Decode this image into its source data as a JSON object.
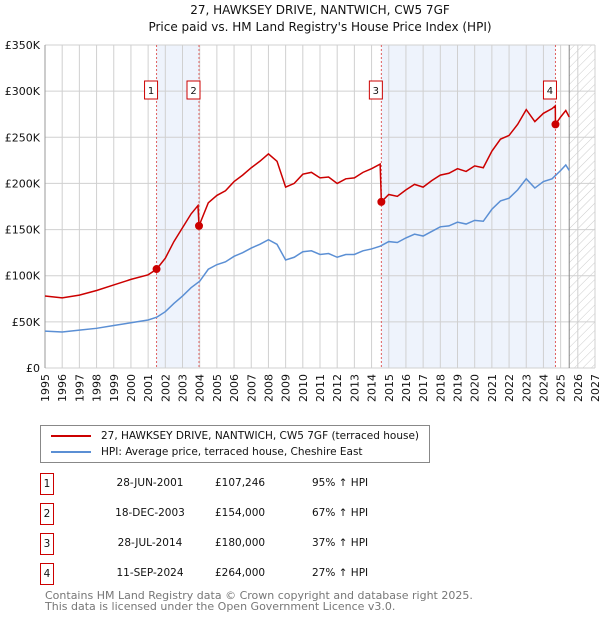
{
  "chart_data": {
    "type": "line",
    "title": "27, HAWKSEY DRIVE, NANTWICH, CW5 7GF",
    "subtitle": "Price paid vs. HM Land Registry's House Price Index (HPI)",
    "xlim": [
      1995,
      2027
    ],
    "ylim": [
      0,
      350000
    ],
    "yticks": [
      {
        "v": 0,
        "label": "£0"
      },
      {
        "v": 50000,
        "label": "£50K"
      },
      {
        "v": 100000,
        "label": "£100K"
      },
      {
        "v": 150000,
        "label": "£150K"
      },
      {
        "v": 200000,
        "label": "£200K"
      },
      {
        "v": 250000,
        "label": "£250K"
      },
      {
        "v": 300000,
        "label": "£300K"
      },
      {
        "v": 350000,
        "label": "£350K"
      }
    ],
    "xticks": [
      "1995",
      "1996",
      "1997",
      "1998",
      "1999",
      "2000",
      "2001",
      "2002",
      "2003",
      "2004",
      "2005",
      "2006",
      "2007",
      "2008",
      "2009",
      "2010",
      "2011",
      "2012",
      "2013",
      "2014",
      "2015",
      "2016",
      "2017",
      "2018",
      "2019",
      "2020",
      "2021",
      "2022",
      "2023",
      "2024",
      "2025",
      "2026",
      "2027"
    ],
    "grid": true,
    "shaded_ranges": [
      [
        2001.49,
        2003.96
      ],
      [
        2014.57,
        2024.7
      ]
    ],
    "forecast_from": 2025.5,
    "series": [
      {
        "name": "27, HAWKSEY DRIVE, NANTWICH, CW5 7GF (terraced house)",
        "color": "#cc0000",
        "points": [
          [
            1995,
            78
          ],
          [
            1996,
            76
          ],
          [
            1997,
            79
          ],
          [
            1998,
            84
          ],
          [
            1999,
            90
          ],
          [
            2000,
            96
          ],
          [
            2001,
            101
          ],
          [
            2001.49,
            107
          ],
          [
            2002,
            119
          ],
          [
            2002.5,
            137
          ],
          [
            2003,
            152
          ],
          [
            2003.5,
            167
          ],
          [
            2003.9,
            176
          ],
          [
            2003.96,
            154
          ],
          [
            2004.5,
            179
          ],
          [
            2005,
            187
          ],
          [
            2005.5,
            192
          ],
          [
            2006,
            202
          ],
          [
            2006.5,
            209
          ],
          [
            2007,
            217
          ],
          [
            2007.5,
            224
          ],
          [
            2008,
            232
          ],
          [
            2008.5,
            224
          ],
          [
            2009,
            196
          ],
          [
            2009.5,
            200
          ],
          [
            2010,
            210
          ],
          [
            2010.5,
            212
          ],
          [
            2011,
            206
          ],
          [
            2011.5,
            207
          ],
          [
            2012,
            200
          ],
          [
            2012.5,
            205
          ],
          [
            2013,
            206
          ],
          [
            2013.5,
            212
          ],
          [
            2014,
            216
          ],
          [
            2014.5,
            221
          ],
          [
            2014.57,
            180
          ],
          [
            2015,
            188
          ],
          [
            2015.5,
            186
          ],
          [
            2016,
            193
          ],
          [
            2016.5,
            199
          ],
          [
            2017,
            196
          ],
          [
            2017.5,
            203
          ],
          [
            2018,
            209
          ],
          [
            2018.5,
            211
          ],
          [
            2019,
            216
          ],
          [
            2019.5,
            213
          ],
          [
            2020,
            219
          ],
          [
            2020.5,
            217
          ],
          [
            2021,
            235
          ],
          [
            2021.5,
            248
          ],
          [
            2022,
            252
          ],
          [
            2022.5,
            264
          ],
          [
            2023,
            280
          ],
          [
            2023.5,
            267
          ],
          [
            2024,
            276
          ],
          [
            2024.5,
            281
          ],
          [
            2024.69,
            284
          ],
          [
            2024.7,
            264
          ],
          [
            2025,
            272
          ],
          [
            2025.3,
            279
          ],
          [
            2025.5,
            272
          ]
        ]
      },
      {
        "name": "HPI: Average price, terraced house, Cheshire East",
        "color": "#5b8fd4",
        "points": [
          [
            1995,
            40
          ],
          [
            1996,
            39
          ],
          [
            1997,
            41
          ],
          [
            1998,
            43
          ],
          [
            1999,
            46
          ],
          [
            2000,
            49
          ],
          [
            2001,
            52
          ],
          [
            2001.5,
            55
          ],
          [
            2002,
            61
          ],
          [
            2002.5,
            70
          ],
          [
            2003,
            78
          ],
          [
            2003.5,
            87
          ],
          [
            2004,
            94
          ],
          [
            2004.5,
            107
          ],
          [
            2005,
            112
          ],
          [
            2005.5,
            115
          ],
          [
            2006,
            121
          ],
          [
            2006.5,
            125
          ],
          [
            2007,
            130
          ],
          [
            2007.5,
            134
          ],
          [
            2008,
            139
          ],
          [
            2008.5,
            134
          ],
          [
            2009,
            117
          ],
          [
            2009.5,
            120
          ],
          [
            2010,
            126
          ],
          [
            2010.5,
            127
          ],
          [
            2011,
            123
          ],
          [
            2011.5,
            124
          ],
          [
            2012,
            120
          ],
          [
            2012.5,
            123
          ],
          [
            2013,
            123
          ],
          [
            2013.5,
            127
          ],
          [
            2014,
            129
          ],
          [
            2014.5,
            132
          ],
          [
            2015,
            137
          ],
          [
            2015.5,
            136
          ],
          [
            2016,
            141
          ],
          [
            2016.5,
            145
          ],
          [
            2017,
            143
          ],
          [
            2017.5,
            148
          ],
          [
            2018,
            153
          ],
          [
            2018.5,
            154
          ],
          [
            2019,
            158
          ],
          [
            2019.5,
            156
          ],
          [
            2020,
            160
          ],
          [
            2020.5,
            159
          ],
          [
            2021,
            172
          ],
          [
            2021.5,
            181
          ],
          [
            2022,
            184
          ],
          [
            2022.5,
            193
          ],
          [
            2023,
            205
          ],
          [
            2023.5,
            195
          ],
          [
            2024,
            202
          ],
          [
            2024.5,
            205
          ],
          [
            2025,
            214
          ],
          [
            2025.3,
            220
          ],
          [
            2025.5,
            214
          ]
        ]
      }
    ],
    "y_units": "thousands GBP",
    "sales": [
      {
        "label": "1",
        "x": 2001.49,
        "value": 107.246
      },
      {
        "label": "2",
        "x": 2003.96,
        "value": 154
      },
      {
        "label": "3",
        "x": 2014.57,
        "value": 180
      },
      {
        "label": "4",
        "x": 2024.7,
        "value": 264
      }
    ]
  },
  "legend": {
    "red": "27, HAWKSEY DRIVE, NANTWICH, CW5 7GF (terraced house)",
    "blue": "HPI: Average price, terraced house, Cheshire East"
  },
  "table": [
    {
      "n": "1",
      "date": "28-JUN-2001",
      "price": "£107,246",
      "hpi": "95% ↑ HPI"
    },
    {
      "n": "2",
      "date": "18-DEC-2003",
      "price": "£154,000",
      "hpi": "67% ↑ HPI"
    },
    {
      "n": "3",
      "date": "28-JUL-2014",
      "price": "£180,000",
      "hpi": "37% ↑ HPI"
    },
    {
      "n": "4",
      "date": "11-SEP-2024",
      "price": "£264,000",
      "hpi": "27% ↑ HPI"
    }
  ],
  "footer": {
    "line1": "Contains HM Land Registry data © Crown copyright and database right 2025.",
    "line2": "This data is licensed under the Open Government Licence v3.0."
  }
}
